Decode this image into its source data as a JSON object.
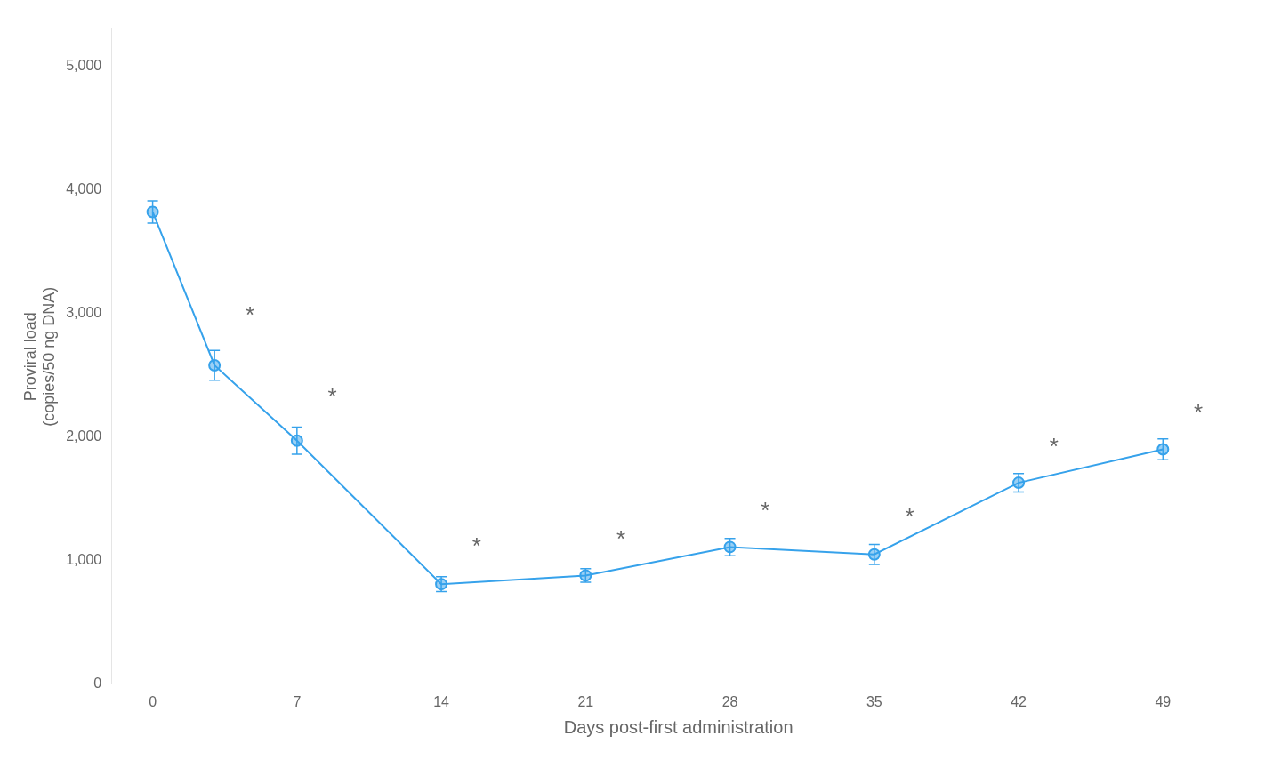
{
  "chart_data": {
    "type": "line",
    "x": [
      0,
      3,
      7,
      14,
      21,
      28,
      35,
      42,
      49
    ],
    "values": [
      3820,
      2580,
      1970,
      810,
      880,
      1110,
      1050,
      1630,
      1900
    ],
    "yerr": [
      90,
      120,
      110,
      60,
      55,
      70,
      80,
      75,
      85
    ],
    "marker": "circle",
    "xlabel": "Days post-first administration",
    "ylabel": [
      "Proviral load",
      "(copies/50 ng DNA)"
    ],
    "xlim": [
      -2,
      53
    ],
    "ylim": [
      0,
      5300
    ],
    "xticks": [
      0,
      7,
      14,
      21,
      28,
      35,
      42,
      49
    ],
    "yticks": [
      0,
      {
        "value": 1000,
        "label": "1,000"
      },
      {
        "value": 2000,
        "label": "2,000"
      },
      {
        "value": 3000,
        "label": "3,000"
      },
      {
        "value": 4000,
        "label": "4,000"
      },
      {
        "value": 5000,
        "label": "5,000"
      }
    ],
    "grid": false,
    "annotations": [
      {
        "text": "*",
        "x": 4.5,
        "y": 2880
      },
      {
        "text": "*",
        "x": 8.5,
        "y": 2220
      },
      {
        "text": "*",
        "x": 15.5,
        "y": 1010
      },
      {
        "text": "*",
        "x": 22.5,
        "y": 1070
      },
      {
        "text": "*",
        "x": 29.5,
        "y": 1300
      },
      {
        "text": "*",
        "x": 36.5,
        "y": 1250
      },
      {
        "text": "*",
        "x": 43.5,
        "y": 1820
      },
      {
        "text": "*",
        "x": 50.5,
        "y": 2090
      }
    ]
  }
}
